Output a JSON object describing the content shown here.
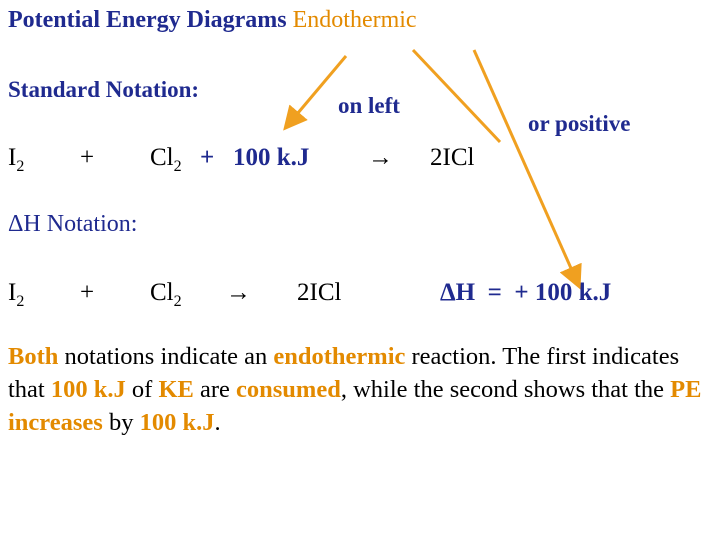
{
  "title": {
    "main": "Potential Energy Diagrams",
    "highlight": "Endothermic"
  },
  "standard_notation": {
    "heading": "Standard Notation:",
    "note_left": "on left",
    "note_right": "or positive",
    "equation": {
      "reactant_1": "I",
      "reactant_1_sub": "2",
      "plus": "+",
      "reactant_2": "Cl",
      "reactant_2_sub": "2",
      "energy_term": "+   100 k.J",
      "arrow": "→",
      "product": "2ICl"
    }
  },
  "delta_h_notation": {
    "heading": "ΔH Notation:",
    "equation": {
      "reactant_1": "I",
      "reactant_1_sub": "2",
      "plus": "+",
      "reactant_2": "Cl",
      "reactant_2_sub": "2",
      "arrow": "→",
      "product": "2ICl",
      "delta_h": "ΔH  =  + 100 k.J"
    }
  },
  "paragraph": {
    "runs": [
      "Both",
      " notations indicate an ",
      "endothermic",
      " reaction. The first indicates that ",
      "100 k.J",
      " of ",
      "KE",
      " are ",
      "consumed",
      ", while the second shows that the ",
      "PE increases",
      " by ",
      "100 k.J",
      "."
    ]
  }
}
